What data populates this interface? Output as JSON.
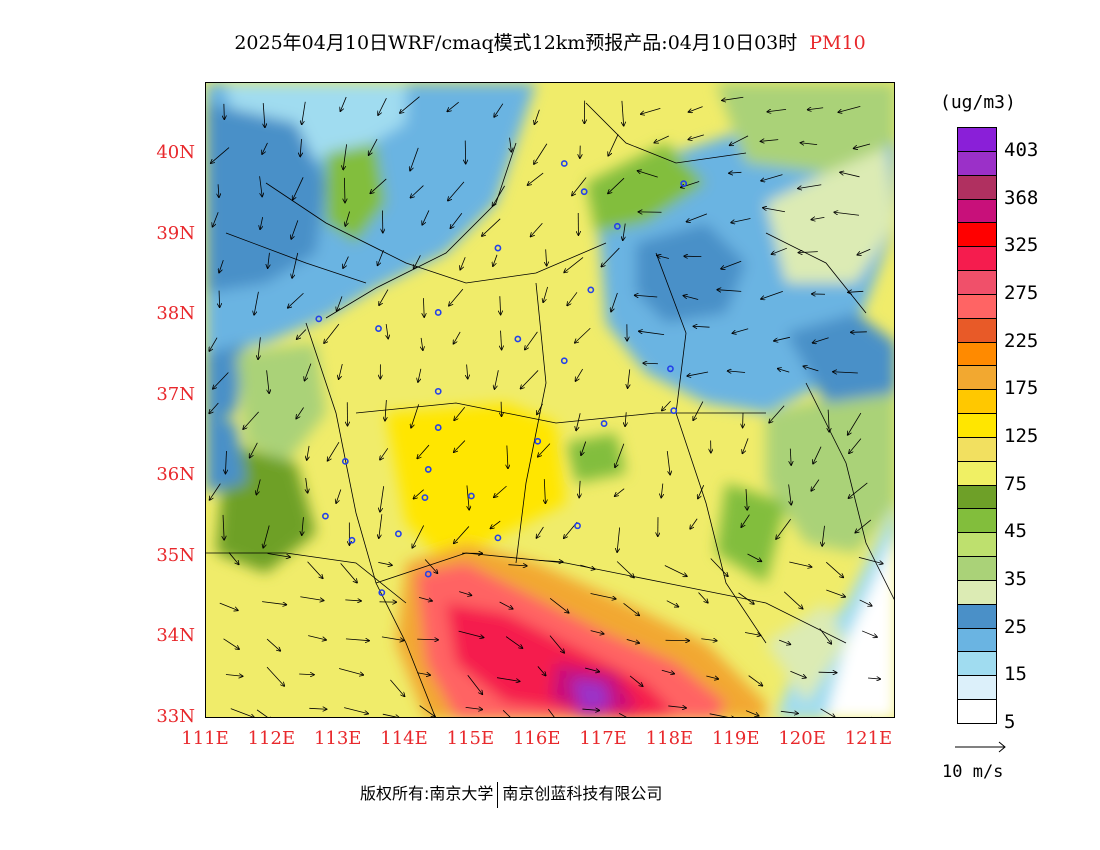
{
  "header": {
    "title": "2025年04月10日WRF/cmaq模式12km预报产品:04月10日03时",
    "pollutant": "PM10"
  },
  "map": {
    "lat_labels": [
      "40N",
      "39N",
      "38N",
      "37N",
      "36N",
      "35N",
      "34N",
      "33N"
    ],
    "lon_labels": [
      "111E",
      "112E",
      "113E",
      "114E",
      "115E",
      "116E",
      "117E",
      "118E",
      "119E",
      "120E",
      "121E"
    ],
    "lon_range": [
      111,
      121.4
    ],
    "lat_range": [
      33,
      40.9
    ],
    "station_marker_color": "#2442e8",
    "stations": [
      {
        "lon": 116.4,
        "lat": 39.9
      },
      {
        "lon": 116.7,
        "lat": 39.55
      },
      {
        "lon": 118.2,
        "lat": 39.65
      },
      {
        "lon": 117.2,
        "lat": 39.12
      },
      {
        "lon": 115.4,
        "lat": 38.85
      },
      {
        "lon": 116.8,
        "lat": 38.33
      },
      {
        "lon": 114.5,
        "lat": 38.05
      },
      {
        "lon": 113.6,
        "lat": 37.85
      },
      {
        "lon": 115.7,
        "lat": 37.72
      },
      {
        "lon": 116.4,
        "lat": 37.45
      },
      {
        "lon": 118.0,
        "lat": 37.35
      },
      {
        "lon": 114.5,
        "lat": 37.07
      },
      {
        "lon": 118.05,
        "lat": 36.83
      },
      {
        "lon": 117.0,
        "lat": 36.67
      },
      {
        "lon": 114.5,
        "lat": 36.62
      },
      {
        "lon": 116.0,
        "lat": 36.45
      },
      {
        "lon": 113.1,
        "lat": 36.2
      },
      {
        "lon": 114.35,
        "lat": 36.1
      },
      {
        "lon": 115.0,
        "lat": 35.77
      },
      {
        "lon": 114.3,
        "lat": 35.75
      },
      {
        "lon": 112.8,
        "lat": 35.52
      },
      {
        "lon": 116.6,
        "lat": 35.4
      },
      {
        "lon": 113.9,
        "lat": 35.3
      },
      {
        "lon": 115.4,
        "lat": 35.25
      },
      {
        "lon": 113.2,
        "lat": 35.22
      },
      {
        "lon": 114.35,
        "lat": 34.8
      },
      {
        "lon": 113.65,
        "lat": 34.57
      },
      {
        "lon": 112.7,
        "lat": 37.97
      }
    ]
  },
  "legend": {
    "unit": "(ug/m3)",
    "colors": [
      "#8a1fd8",
      "#9b30c8",
      "#b03060",
      "#c8107a",
      "#ff0000",
      "#f51c4e",
      "#f0506a",
      "#ff6464",
      "#e85a28",
      "#ff8a00",
      "#f2a830",
      "#ffc800",
      "#ffe600",
      "#f2e060",
      "#f0f064",
      "#6ea028",
      "#82be3c",
      "#bee06e",
      "#aad278",
      "#dcebb4",
      "#4a90c8",
      "#6ab4e2",
      "#a0dcf0",
      "#dcf0fa",
      "#ffffff"
    ],
    "labels": [
      "403",
      "368",
      "325",
      "275",
      "225",
      "175",
      "125",
      "75",
      "45",
      "35",
      "25",
      "15",
      "5"
    ]
  },
  "wind_ref": {
    "label": "10 m/s"
  },
  "footer": {
    "left": "版权所有:南京大学",
    "right": "南京创蓝科技有限公司"
  }
}
